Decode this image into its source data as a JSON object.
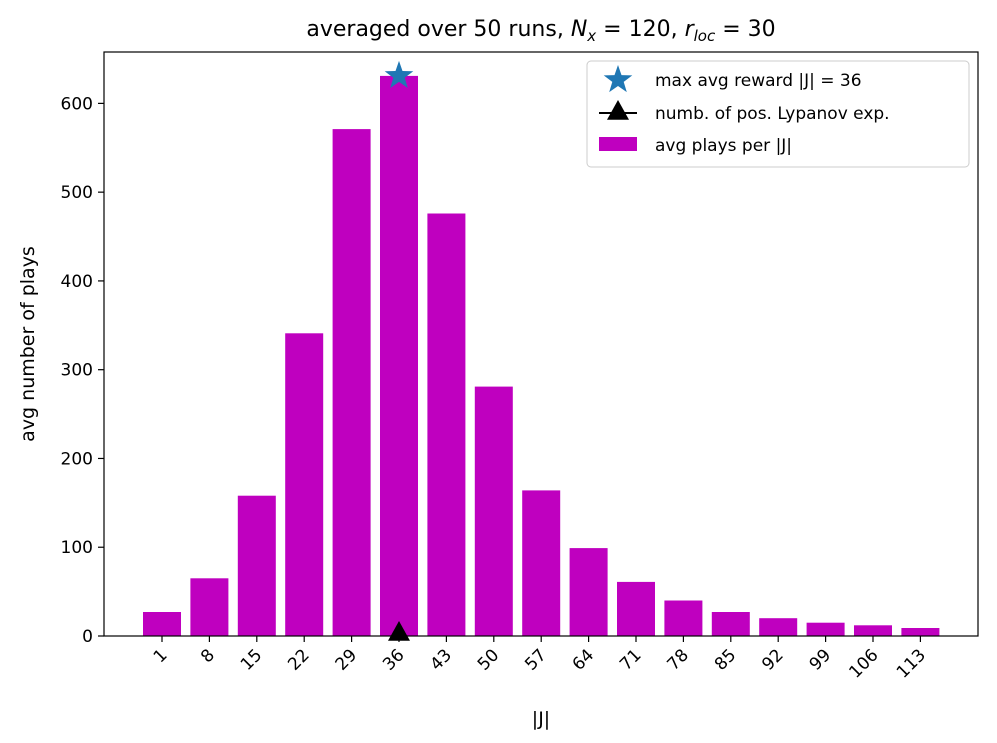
{
  "chart_data": {
    "type": "bar",
    "title_prefix": "averaged over 50 runs, ",
    "title_nx_base": "N",
    "title_nx_sub": "x",
    "title_nx_eq": " = 120, ",
    "title_r_base": "r",
    "title_r_sub": "loc",
    "title_r_eq": " = 30",
    "xlabel": "|J|",
    "ylabel": "avg number of plays",
    "categories": [
      1,
      8,
      15,
      22,
      29,
      36,
      43,
      50,
      57,
      64,
      71,
      78,
      85,
      92,
      99,
      106,
      113
    ],
    "category_labels": [
      "1",
      "8",
      "15",
      "22",
      "29",
      "36",
      "43",
      "50",
      "57",
      "64",
      "71",
      "78",
      "85",
      "92",
      "99",
      "106",
      "113"
    ],
    "values": [
      27,
      65,
      158,
      341,
      571,
      631,
      476,
      281,
      164,
      99,
      61,
      40,
      27,
      20,
      15,
      12,
      9
    ],
    "ylim": [
      0,
      665
    ],
    "yticks": [
      0,
      100,
      200,
      300,
      400,
      500,
      600
    ],
    "bar_color": "#bf00bf",
    "markers": {
      "max_reward": {
        "x": 36,
        "y": 631,
        "color": "#1f77b4",
        "shape": "star"
      },
      "lyapunov": {
        "x": 36,
        "y": 0,
        "color": "#000000",
        "shape": "triangle"
      }
    },
    "legend": {
      "position": "top-right",
      "entries": [
        "max avg reward |J| = 36",
        "numb. of pos. Lypanov exp.",
        "avg plays per |J|"
      ]
    },
    "grid": false
  }
}
